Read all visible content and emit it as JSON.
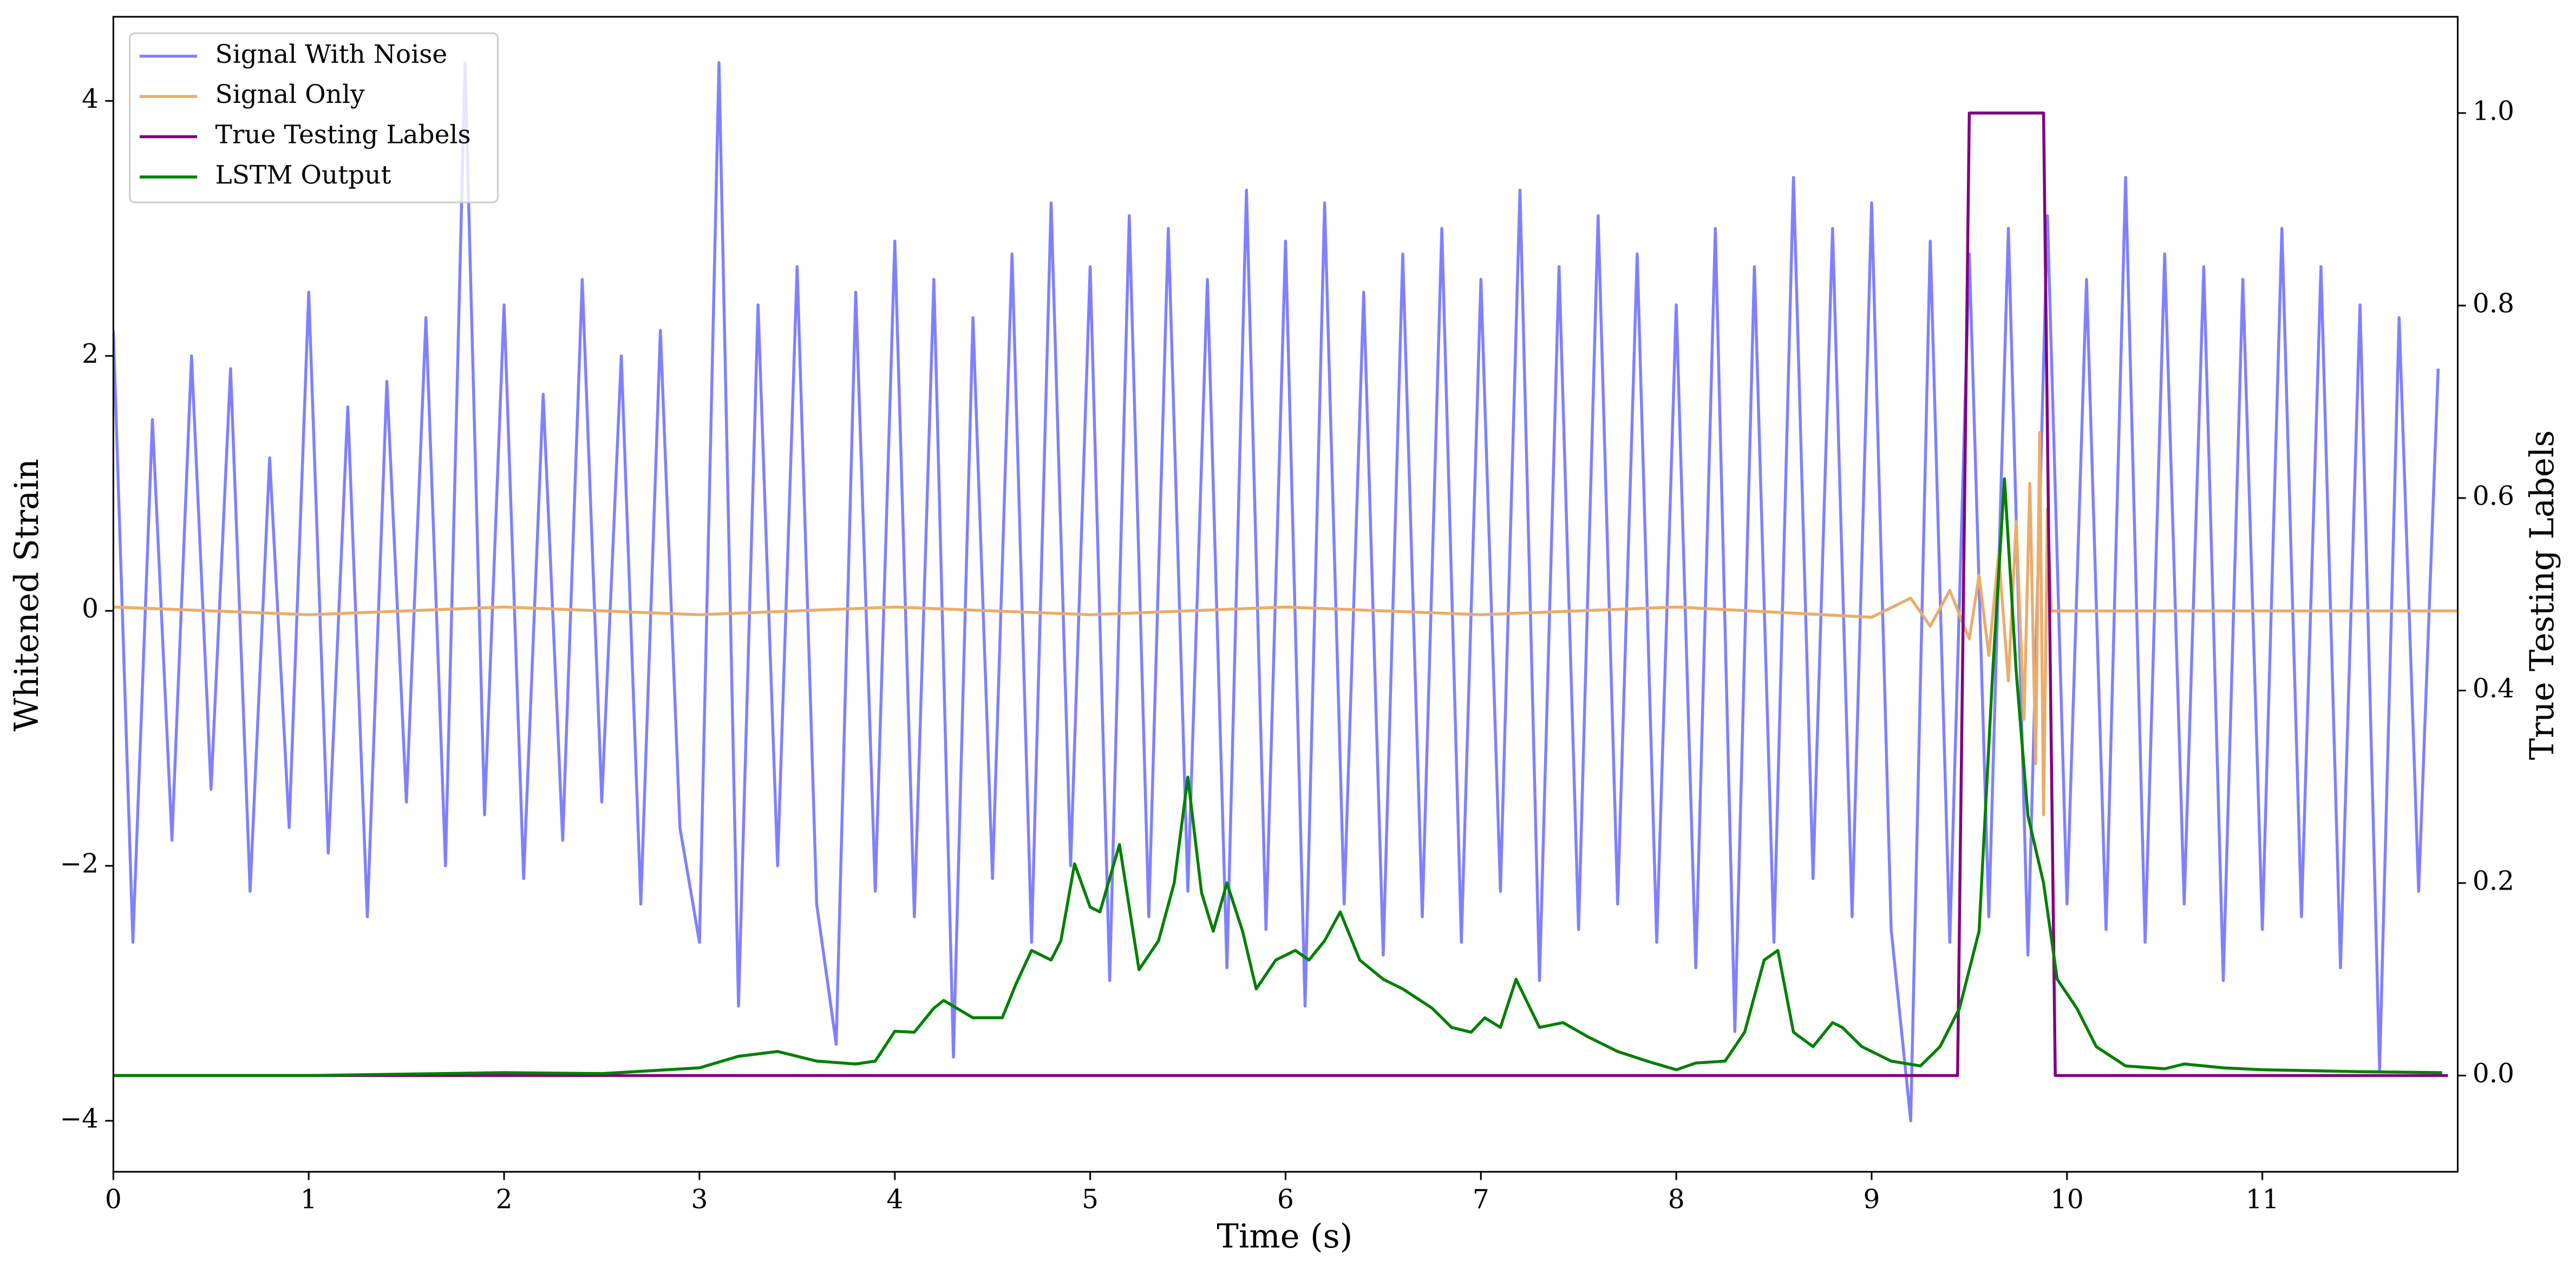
{
  "chart_data": {
    "type": "line",
    "xlabel": "Time (s)",
    "ylabel": "Whitened Strain",
    "y2label": "True Testing Labels",
    "xlim": [
      0,
      12
    ],
    "xticks": [
      0,
      1,
      2,
      3,
      4,
      5,
      6,
      7,
      8,
      9,
      10,
      11
    ],
    "ylim": [
      -4.4,
      4.66
    ],
    "yticks": [
      {
        "value": -4,
        "label": "−4"
      },
      {
        "value": -2,
        "label": "−2"
      },
      0,
      2,
      4
    ],
    "y2lim": [
      -0.1,
      1.1
    ],
    "y2ticks": [
      {
        "value": 0,
        "label": "0.0"
      },
      0.2,
      0.4,
      0.6,
      0.8,
      {
        "value": 1,
        "label": "1.0"
      }
    ],
    "legend": "upper left",
    "grid": false,
    "series": [
      {
        "name": "Signal With Noise",
        "color": "#8080ff",
        "x": [
          0,
          0.1,
          0.2,
          0.3,
          0.4,
          0.5,
          0.6,
          0.7,
          0.8,
          0.9,
          1,
          1.1,
          1.2,
          1.3,
          1.4,
          1.5,
          1.6,
          1.7,
          1.8,
          1.9,
          2,
          2.1,
          2.2,
          2.3,
          2.4,
          2.5,
          2.6,
          2.7,
          2.8,
          2.9,
          3,
          3.1,
          3.2,
          3.3,
          3.4,
          3.5,
          3.6,
          3.7,
          3.8,
          3.9,
          4,
          4.1,
          4.2,
          4.3,
          4.4,
          4.5,
          4.6,
          4.7,
          4.8,
          4.9,
          5,
          5.1,
          5.2,
          5.3,
          5.4,
          5.5,
          5.6,
          5.7,
          5.8,
          5.9,
          6,
          6.1,
          6.2,
          6.3,
          6.4,
          6.5,
          6.6,
          6.7,
          6.8,
          6.9,
          7,
          7.1,
          7.2,
          7.3,
          7.4,
          7.5,
          7.6,
          7.7,
          7.8,
          7.9,
          8,
          8.1,
          8.2,
          8.3,
          8.4,
          8.5,
          8.6,
          8.7,
          8.8,
          8.9,
          9,
          9.1,
          9.2,
          9.3,
          9.4,
          9.5,
          9.6,
          9.7,
          9.8,
          9.9,
          10,
          10.1,
          10.2,
          10.3,
          10.4,
          10.5,
          10.6,
          10.7,
          10.8,
          10.9,
          11,
          11.1,
          11.2,
          11.3,
          11.4,
          11.5,
          11.6,
          11.7,
          11.8,
          11.9
        ],
        "values": [
          2.2,
          -2.6,
          1.5,
          -1.8,
          2.0,
          -1.4,
          1.9,
          -2.2,
          1.2,
          -1.7,
          2.5,
          -1.9,
          1.6,
          -2.4,
          1.8,
          -1.5,
          2.3,
          -2.0,
          4.3,
          -1.6,
          2.4,
          -2.1,
          1.7,
          -1.8,
          2.6,
          -1.5,
          2.0,
          -2.3,
          2.2,
          -1.7,
          -2.6,
          4.3,
          -3.1,
          2.4,
          -2.0,
          2.7,
          -2.3,
          -3.4,
          2.5,
          -2.2,
          2.9,
          -2.4,
          2.6,
          -3.5,
          2.3,
          -2.1,
          2.8,
          -2.6,
          3.2,
          -2.0,
          2.7,
          -2.9,
          3.1,
          -2.4,
          3.0,
          -2.2,
          2.6,
          -2.8,
          3.3,
          -2.5,
          2.9,
          -3.1,
          3.2,
          -2.3,
          2.5,
          -2.7,
          2.8,
          -2.4,
          3.0,
          -2.6,
          2.6,
          -2.2,
          3.3,
          -2.9,
          2.7,
          -2.5,
          3.1,
          -2.3,
          2.8,
          -2.6,
          2.4,
          -2.8,
          3.0,
          -3.3,
          2.7,
          -2.6,
          3.4,
          -2.1,
          3.0,
          -2.4,
          3.2,
          -2.5,
          -4.0,
          2.9,
          -2.6,
          2.8,
          -2.4,
          3.0,
          -2.7,
          3.1,
          -2.3,
          2.6,
          -2.5,
          3.4,
          -2.6,
          2.8,
          -2.3,
          2.7,
          -2.9,
          2.6,
          -2.5,
          3.0,
          -2.4,
          2.7,
          -2.8,
          2.4,
          -3.6,
          2.3,
          -2.2,
          1.9
        ]
      },
      {
        "name": "Signal Only",
        "color": "#e9ad6c",
        "x": [
          0,
          1,
          2,
          3,
          4,
          5,
          6,
          7,
          8,
          9,
          9.2,
          9.3,
          9.4,
          9.5,
          9.55,
          9.6,
          9.65,
          9.7,
          9.74,
          9.78,
          9.81,
          9.84,
          9.86,
          9.88,
          9.9,
          9.92,
          12
        ],
        "values": [
          0.03,
          -0.03,
          0.03,
          -0.03,
          0.03,
          -0.03,
          0.03,
          -0.03,
          0.03,
          -0.05,
          0.1,
          -0.12,
          0.16,
          -0.22,
          0.28,
          -0.35,
          0.45,
          -0.55,
          0.7,
          -0.85,
          1.0,
          -1.2,
          1.4,
          -1.6,
          0.8,
          0,
          0
        ]
      },
      {
        "name": "True Testing Labels",
        "color": "#800080",
        "axis": "y2",
        "x": [
          0,
          9.44,
          9.5,
          9.88,
          9.94,
          11.95
        ],
        "values": [
          0,
          0,
          1,
          1,
          0,
          0
        ]
      },
      {
        "name": "LSTM Output",
        "color": "#008000",
        "axis": "y2",
        "x": [
          0,
          1,
          2,
          2.5,
          3,
          3.2,
          3.4,
          3.6,
          3.8,
          3.9,
          4.0,
          4.1,
          4.2,
          4.25,
          4.4,
          4.55,
          4.62,
          4.7,
          4.8,
          4.85,
          4.92,
          5.0,
          5.05,
          5.15,
          5.25,
          5.35,
          5.43,
          5.5,
          5.57,
          5.63,
          5.7,
          5.78,
          5.85,
          5.95,
          6.05,
          6.12,
          6.2,
          6.28,
          6.38,
          6.5,
          6.6,
          6.75,
          6.85,
          6.95,
          7.02,
          7.1,
          7.18,
          7.3,
          7.42,
          7.55,
          7.7,
          7.85,
          8.0,
          8.1,
          8.25,
          8.35,
          8.45,
          8.52,
          8.6,
          8.7,
          8.8,
          8.85,
          8.95,
          9.1,
          9.25,
          9.35,
          9.45,
          9.55,
          9.62,
          9.68,
          9.74,
          9.8,
          9.88,
          9.95,
          10.05,
          10.15,
          10.3,
          10.5,
          10.6,
          10.8,
          11.0,
          11.5,
          11.92
        ],
        "values": [
          0,
          0,
          0.003,
          0.002,
          0.008,
          0.02,
          0.025,
          0.015,
          0.012,
          0.015,
          0.046,
          0.045,
          0.07,
          0.078,
          0.06,
          0.06,
          0.095,
          0.13,
          0.12,
          0.14,
          0.22,
          0.175,
          0.17,
          0.24,
          0.11,
          0.14,
          0.2,
          0.31,
          0.19,
          0.15,
          0.2,
          0.15,
          0.09,
          0.12,
          0.13,
          0.12,
          0.14,
          0.17,
          0.12,
          0.1,
          0.09,
          0.07,
          0.05,
          0.045,
          0.06,
          0.05,
          0.1,
          0.05,
          0.055,
          0.04,
          0.025,
          0.015,
          0.006,
          0.013,
          0.015,
          0.045,
          0.12,
          0.13,
          0.045,
          0.03,
          0.055,
          0.05,
          0.03,
          0.015,
          0.01,
          0.03,
          0.07,
          0.15,
          0.42,
          0.62,
          0.42,
          0.27,
          0.2,
          0.1,
          0.07,
          0.03,
          0.01,
          0.007,
          0.012,
          0.008,
          0.006,
          0.004,
          0.003
        ]
      }
    ]
  }
}
